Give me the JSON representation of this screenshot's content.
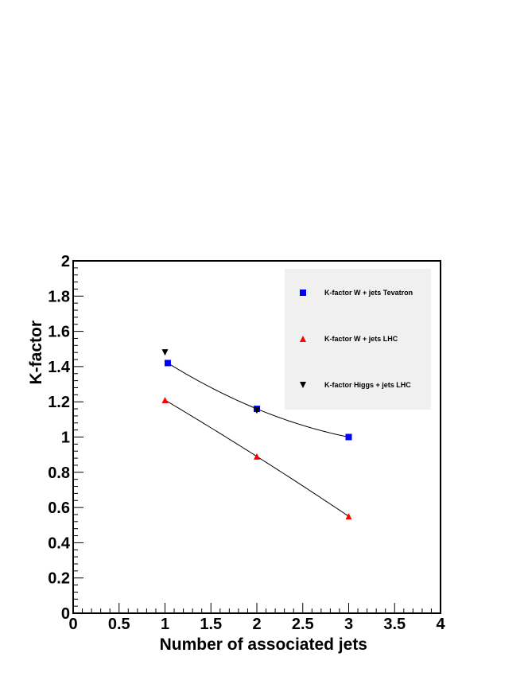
{
  "chart_data": {
    "type": "scatter",
    "xlabel": "Number of associated jets",
    "ylabel": "K-factor",
    "xlim": [
      0,
      4
    ],
    "ylim": [
      0,
      2
    ],
    "x_ticks": [
      "0",
      "0.5",
      "1",
      "1.5",
      "2",
      "2.5",
      "3",
      "3.5",
      "4"
    ],
    "y_ticks": [
      "0",
      "0.2",
      "0.4",
      "0.6",
      "0.8",
      "1",
      "1.2",
      "1.4",
      "1.6",
      "1.8",
      "2"
    ],
    "grid": false,
    "legend_position": "top-right",
    "series": [
      {
        "name": "K-factor W + jets Tevatron",
        "marker": "square",
        "color": "#0000ff",
        "points": [
          {
            "x": 1.03,
            "y": 1.42
          },
          {
            "x": 2,
            "y": 1.16
          },
          {
            "x": 3,
            "y": 1.0
          }
        ],
        "fit_curve": true
      },
      {
        "name": "K-factor W + jets LHC",
        "marker": "triangle-up",
        "color": "#ff0000",
        "points": [
          {
            "x": 1,
            "y": 1.21
          },
          {
            "x": 2,
            "y": 0.89
          },
          {
            "x": 3,
            "y": 0.55
          }
        ],
        "fit_curve": true
      },
      {
        "name": "K-factor Higgs + jets LHC",
        "marker": "triangle-down",
        "color": "#000000",
        "points": [
          {
            "x": 1,
            "y": 1.48
          },
          {
            "x": 2,
            "y": 1.15
          }
        ],
        "fit_curve": false
      }
    ]
  }
}
